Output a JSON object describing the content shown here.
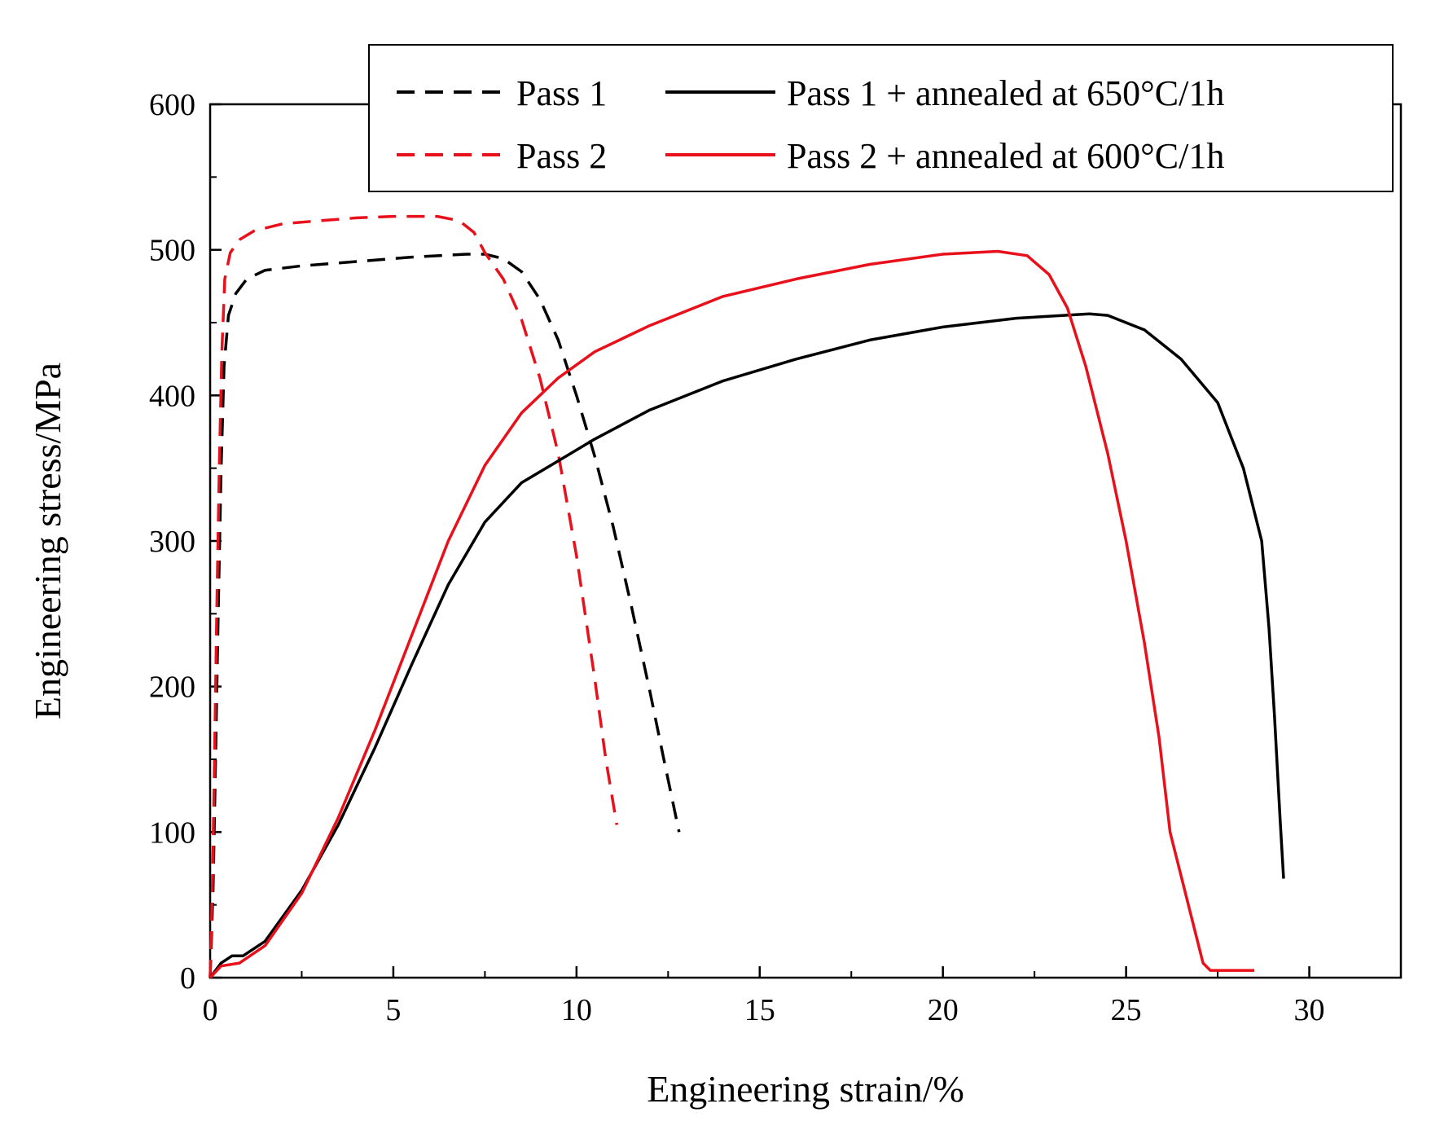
{
  "chart_data": {
    "type": "line",
    "title": "",
    "xlabel": "Engineering strain/%",
    "ylabel": "Engineering stress/MPa",
    "xlim": [
      0,
      32.5
    ],
    "ylim": [
      0,
      600
    ],
    "xticks": [
      0,
      5,
      10,
      15,
      20,
      25,
      30
    ],
    "yticks": [
      0,
      100,
      200,
      300,
      400,
      500,
      600
    ],
    "xtick_labels": [
      "0",
      "5",
      "10",
      "15",
      "20",
      "25",
      "30"
    ],
    "ytick_labels": [
      "0",
      "100",
      "200",
      "300",
      "400",
      "500",
      "600"
    ],
    "grid": false,
    "legend_position": "top-right",
    "series": [
      {
        "name": "Pass 1",
        "color": "#000000",
        "style": "dashed",
        "points": [
          [
            0,
            0
          ],
          [
            0.08,
            60
          ],
          [
            0.15,
            150
          ],
          [
            0.22,
            250
          ],
          [
            0.3,
            350
          ],
          [
            0.38,
            420
          ],
          [
            0.5,
            455
          ],
          [
            0.7,
            470
          ],
          [
            1.0,
            480
          ],
          [
            1.5,
            486
          ],
          [
            2.5,
            489
          ],
          [
            4,
            492
          ],
          [
            5.5,
            495
          ],
          [
            7,
            497
          ],
          [
            7.5,
            497
          ],
          [
            8,
            494
          ],
          [
            8.5,
            485
          ],
          [
            9,
            466
          ],
          [
            9.5,
            438
          ],
          [
            10,
            400
          ],
          [
            10.5,
            358
          ],
          [
            11,
            310
          ],
          [
            11.5,
            255
          ],
          [
            12,
            197
          ],
          [
            12.4,
            148
          ],
          [
            12.8,
            100
          ]
        ]
      },
      {
        "name": "Pass 2",
        "color": "#e8101a",
        "style": "dashed",
        "points": [
          [
            0,
            0
          ],
          [
            0.06,
            60
          ],
          [
            0.12,
            150
          ],
          [
            0.18,
            250
          ],
          [
            0.25,
            350
          ],
          [
            0.32,
            430
          ],
          [
            0.4,
            480
          ],
          [
            0.55,
            498
          ],
          [
            0.8,
            507
          ],
          [
            1.2,
            513
          ],
          [
            2,
            518
          ],
          [
            3,
            520
          ],
          [
            4,
            522
          ],
          [
            5,
            523
          ],
          [
            6.2,
            523
          ],
          [
            6.8,
            520
          ],
          [
            7.2,
            512
          ],
          [
            7.5,
            498
          ],
          [
            8,
            480
          ],
          [
            8.5,
            452
          ],
          [
            9,
            412
          ],
          [
            9.5,
            360
          ],
          [
            10,
            290
          ],
          [
            10.5,
            205
          ],
          [
            10.8,
            150
          ],
          [
            11.1,
            105
          ]
        ]
      },
      {
        "name": "Pass 1 + annealed at 650°C/1h",
        "color": "#000000",
        "style": "solid",
        "points": [
          [
            0,
            0
          ],
          [
            0.3,
            10
          ],
          [
            0.6,
            15
          ],
          [
            0.9,
            15
          ],
          [
            1.5,
            25
          ],
          [
            2.5,
            60
          ],
          [
            3.5,
            105
          ],
          [
            4.5,
            158
          ],
          [
            5.5,
            215
          ],
          [
            6.5,
            270
          ],
          [
            7.5,
            313
          ],
          [
            8.5,
            340
          ],
          [
            9.5,
            355
          ],
          [
            10.5,
            370
          ],
          [
            12,
            390
          ],
          [
            14,
            410
          ],
          [
            16,
            425
          ],
          [
            18,
            438
          ],
          [
            20,
            447
          ],
          [
            22,
            453
          ],
          [
            24,
            456
          ],
          [
            24.5,
            455
          ],
          [
            25.5,
            445
          ],
          [
            26.5,
            425
          ],
          [
            27.5,
            395
          ],
          [
            28.2,
            350
          ],
          [
            28.7,
            300
          ],
          [
            28.9,
            240
          ],
          [
            29.05,
            180
          ],
          [
            29.2,
            110
          ],
          [
            29.3,
            68
          ]
        ]
      },
      {
        "name": "Pass 2 + annealed at 600°C/1h",
        "color": "#e8101a",
        "style": "solid",
        "points": [
          [
            0,
            0
          ],
          [
            0.3,
            8
          ],
          [
            0.8,
            10
          ],
          [
            1.5,
            22
          ],
          [
            2.5,
            58
          ],
          [
            3.5,
            110
          ],
          [
            4.5,
            170
          ],
          [
            5.5,
            235
          ],
          [
            6.5,
            300
          ],
          [
            7.5,
            352
          ],
          [
            8.5,
            388
          ],
          [
            9.5,
            412
          ],
          [
            10.5,
            430
          ],
          [
            12,
            448
          ],
          [
            14,
            468
          ],
          [
            16,
            480
          ],
          [
            18,
            490
          ],
          [
            20,
            497
          ],
          [
            21.5,
            499
          ],
          [
            22.3,
            496
          ],
          [
            22.9,
            483
          ],
          [
            23.4,
            460
          ],
          [
            23.9,
            420
          ],
          [
            24.5,
            360
          ],
          [
            25,
            300
          ],
          [
            25.5,
            230
          ],
          [
            25.9,
            165
          ],
          [
            26.2,
            100
          ],
          [
            26.6,
            60
          ],
          [
            26.9,
            30
          ],
          [
            27.1,
            10
          ],
          [
            27.3,
            5
          ],
          [
            28.5,
            5
          ]
        ]
      }
    ]
  }
}
